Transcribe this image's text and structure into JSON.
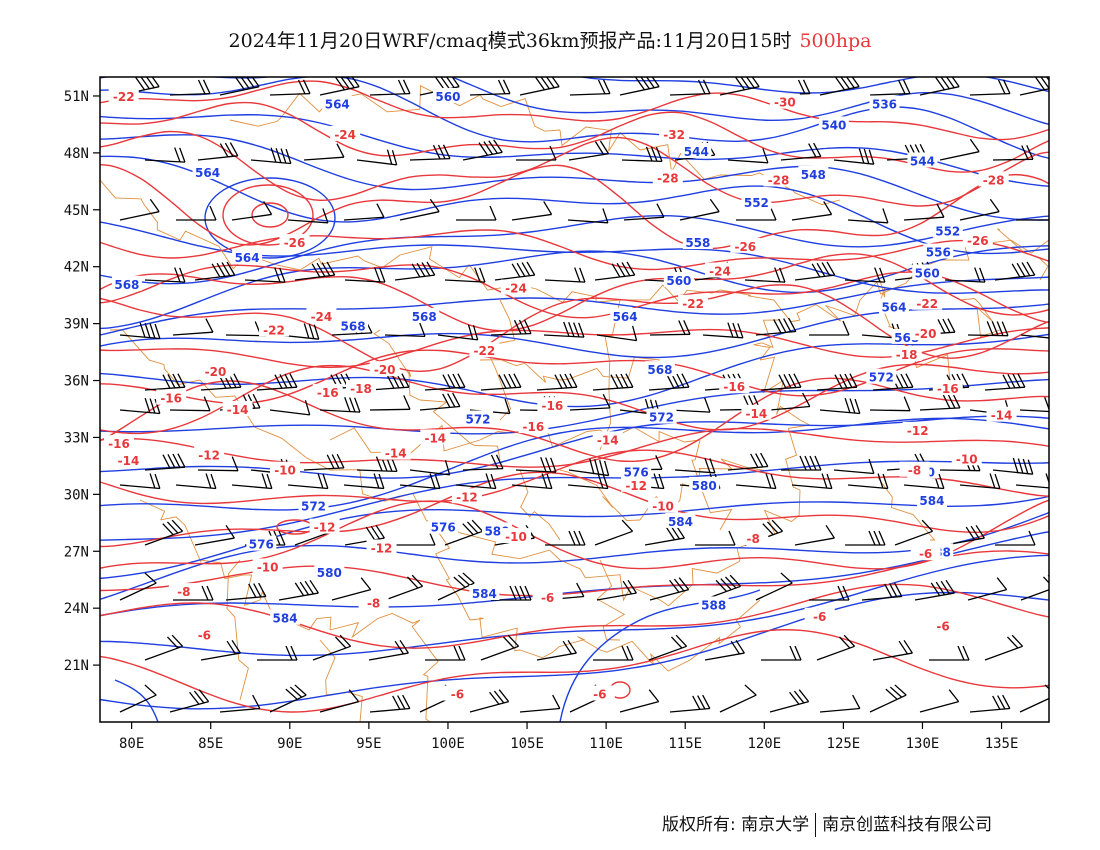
{
  "title": {
    "text": "2024年11月20日WRF/cmaq模式36km预报产品:11月20日15时",
    "level": "500hpa",
    "level_color": "#e8383b"
  },
  "colors": {
    "geopotential_contours": "#1f3fe0",
    "temperature_contours": "#e8383b",
    "wind_barbs": "#000000",
    "boundaries": "#e09040",
    "frame": "#000000"
  },
  "axes": {
    "lon_ticks": [
      "80E",
      "85E",
      "90E",
      "95E",
      "100E",
      "105E",
      "110E",
      "115E",
      "120E",
      "125E",
      "130E",
      "135E"
    ],
    "lat_ticks": [
      "51N",
      "48N",
      "45N",
      "42N",
      "39N",
      "36N",
      "33N",
      "30N",
      "27N",
      "24N",
      "21N"
    ]
  },
  "contours": {
    "geopotential": [
      {
        "label": "560",
        "lon": 100,
        "lat": 51
      },
      {
        "label": "564",
        "lon": 93,
        "lat": 50.6
      },
      {
        "label": "536",
        "lon": 127.6,
        "lat": 50.6
      },
      {
        "label": "540",
        "lon": 124.4,
        "lat": 49.5
      },
      {
        "label": "544",
        "lon": 115.7,
        "lat": 48.1
      },
      {
        "label": "548",
        "lon": 123.1,
        "lat": 46.9
      },
      {
        "label": "544",
        "lon": 130,
        "lat": 47.6
      },
      {
        "label": "552",
        "lon": 119.5,
        "lat": 45.4
      },
      {
        "label": "552",
        "lon": 131.6,
        "lat": 43.9
      },
      {
        "label": "556",
        "lon": 131,
        "lat": 42.8
      },
      {
        "label": "558",
        "lon": 115.8,
        "lat": 43.3
      },
      {
        "label": "560",
        "lon": 130.3,
        "lat": 41.7
      },
      {
        "label": "564",
        "lon": 84.8,
        "lat": 47
      },
      {
        "label": "564",
        "lon": 87.3,
        "lat": 42.5
      },
      {
        "label": "568",
        "lon": 79.7,
        "lat": 41.1
      },
      {
        "label": "560",
        "lon": 114.6,
        "lat": 41.3
      },
      {
        "label": "564",
        "lon": 111.2,
        "lat": 39.4
      },
      {
        "label": "564",
        "lon": 128.2,
        "lat": 39.9
      },
      {
        "label": "568",
        "lon": 98.5,
        "lat": 39.4
      },
      {
        "label": "568",
        "lon": 94,
        "lat": 38.9
      },
      {
        "label": "568",
        "lon": 113.4,
        "lat": 36.6
      },
      {
        "label": "568",
        "lon": 129,
        "lat": 38.3
      },
      {
        "label": "572",
        "lon": 127.4,
        "lat": 36.2
      },
      {
        "label": "572",
        "lon": 101.9,
        "lat": 34
      },
      {
        "label": "572",
        "lon": 113.5,
        "lat": 34.1
      },
      {
        "label": "576",
        "lon": 111.9,
        "lat": 31.2
      },
      {
        "label": "580",
        "lon": 116.2,
        "lat": 30.5
      },
      {
        "label": "580",
        "lon": 130,
        "lat": 31.2
      },
      {
        "label": "572",
        "lon": 91.5,
        "lat": 29.4
      },
      {
        "label": "576",
        "lon": 99.7,
        "lat": 28.3
      },
      {
        "label": "580",
        "lon": 103.1,
        "lat": 28.1
      },
      {
        "label": "584",
        "lon": 130.6,
        "lat": 29.7
      },
      {
        "label": "584",
        "lon": 114.7,
        "lat": 28.6
      },
      {
        "label": "576",
        "lon": 88.2,
        "lat": 27.4
      },
      {
        "label": "580",
        "lon": 92.5,
        "lat": 25.9
      },
      {
        "label": "584",
        "lon": 102.3,
        "lat": 24.8
      },
      {
        "label": "584",
        "lon": 89.7,
        "lat": 23.5
      },
      {
        "label": "588",
        "lon": 116.8,
        "lat": 24.2
      },
      {
        "label": "588",
        "lon": 131,
        "lat": 27
      }
    ],
    "temperature": [
      {
        "label": "-22",
        "lon": 79.5,
        "lat": 51
      },
      {
        "label": "-24",
        "lon": 93.5,
        "lat": 49
      },
      {
        "label": "-26",
        "lon": 90.3,
        "lat": 43.3
      },
      {
        "label": "-32",
        "lon": 114.3,
        "lat": 49
      },
      {
        "label": "-30",
        "lon": 121.3,
        "lat": 50.7
      },
      {
        "label": "-28",
        "lon": 113.9,
        "lat": 46.7
      },
      {
        "label": "-28",
        "lon": 120.9,
        "lat": 46.6
      },
      {
        "label": "-28",
        "lon": 134.5,
        "lat": 46.6
      },
      {
        "label": "-26",
        "lon": 118.8,
        "lat": 43.1
      },
      {
        "label": "-26",
        "lon": 133.5,
        "lat": 43.4
      },
      {
        "label": "-24",
        "lon": 117.2,
        "lat": 41.8
      },
      {
        "label": "-24",
        "lon": 104.3,
        "lat": 40.9
      },
      {
        "label": "-24",
        "lon": 92,
        "lat": 39.4
      },
      {
        "label": "-22",
        "lon": 115.5,
        "lat": 40.1
      },
      {
        "label": "-22",
        "lon": 130.3,
        "lat": 40.1
      },
      {
        "label": "-22",
        "lon": 89,
        "lat": 38.7
      },
      {
        "label": "-22",
        "lon": 102.3,
        "lat": 37.6
      },
      {
        "label": "-20",
        "lon": 130.2,
        "lat": 38.5
      },
      {
        "label": "-20",
        "lon": 85.3,
        "lat": 36.5
      },
      {
        "label": "-20",
        "lon": 96,
        "lat": 36.6
      },
      {
        "label": "-18",
        "lon": 129,
        "lat": 37.4
      },
      {
        "label": "-18",
        "lon": 94.5,
        "lat": 35.6
      },
      {
        "label": "-16",
        "lon": 82.5,
        "lat": 35.1
      },
      {
        "label": "-16",
        "lon": 92.4,
        "lat": 35.4
      },
      {
        "label": "-16",
        "lon": 118.1,
        "lat": 35.7
      },
      {
        "label": "-16",
        "lon": 131.6,
        "lat": 35.6
      },
      {
        "label": "-16",
        "lon": 106.6,
        "lat": 34.7
      },
      {
        "label": "-16",
        "lon": 105.4,
        "lat": 33.6
      },
      {
        "label": "-14",
        "lon": 86.7,
        "lat": 34.5
      },
      {
        "label": "-14",
        "lon": 119.5,
        "lat": 34.3
      },
      {
        "label": "-14",
        "lon": 135,
        "lat": 34.2
      },
      {
        "label": "-14",
        "lon": 99.2,
        "lat": 33
      },
      {
        "label": "-14",
        "lon": 110.1,
        "lat": 32.9
      },
      {
        "label": "-14",
        "lon": 96.7,
        "lat": 32.2
      },
      {
        "label": "-12",
        "lon": 84.9,
        "lat": 32.1
      },
      {
        "label": "-12",
        "lon": 129.7,
        "lat": 33.4
      },
      {
        "label": "-12",
        "lon": 111.9,
        "lat": 30.5
      },
      {
        "label": "-12",
        "lon": 101.2,
        "lat": 29.9
      },
      {
        "label": "-12",
        "lon": 92.2,
        "lat": 28.3
      },
      {
        "label": "-12",
        "lon": 95.8,
        "lat": 27.2
      },
      {
        "label": "-10",
        "lon": 132.8,
        "lat": 31.9
      },
      {
        "label": "-10",
        "lon": 89.7,
        "lat": 31.3
      },
      {
        "label": "-10",
        "lon": 104.3,
        "lat": 27.8
      },
      {
        "label": "-10",
        "lon": 113.6,
        "lat": 29.4
      },
      {
        "label": "-10",
        "lon": 88.6,
        "lat": 26.2
      },
      {
        "label": "-14",
        "lon": 79.8,
        "lat": 31.8
      },
      {
        "label": "-16",
        "lon": 79.2,
        "lat": 32.7
      },
      {
        "label": "-8",
        "lon": 129.5,
        "lat": 31.3
      },
      {
        "label": "-8",
        "lon": 119.3,
        "lat": 27.7
      },
      {
        "label": "-8",
        "lon": 83.3,
        "lat": 24.9
      },
      {
        "label": "-8",
        "lon": 95.3,
        "lat": 24.3
      },
      {
        "label": "-6",
        "lon": 130.2,
        "lat": 26.9
      },
      {
        "label": "-6",
        "lon": 106.3,
        "lat": 24.6
      },
      {
        "label": "-6",
        "lon": 123.5,
        "lat": 23.6
      },
      {
        "label": "-6",
        "lon": 131.3,
        "lat": 23.1
      },
      {
        "label": "-6",
        "lon": 84.6,
        "lat": 22.6
      },
      {
        "label": "-6",
        "lon": 100.6,
        "lat": 19.5
      },
      {
        "label": "-6",
        "lon": 109.6,
        "lat": 19.5
      }
    ]
  },
  "copyright": {
    "left": "版权所有: 南京大学",
    "right": "南京创蓝科技有限公司"
  }
}
